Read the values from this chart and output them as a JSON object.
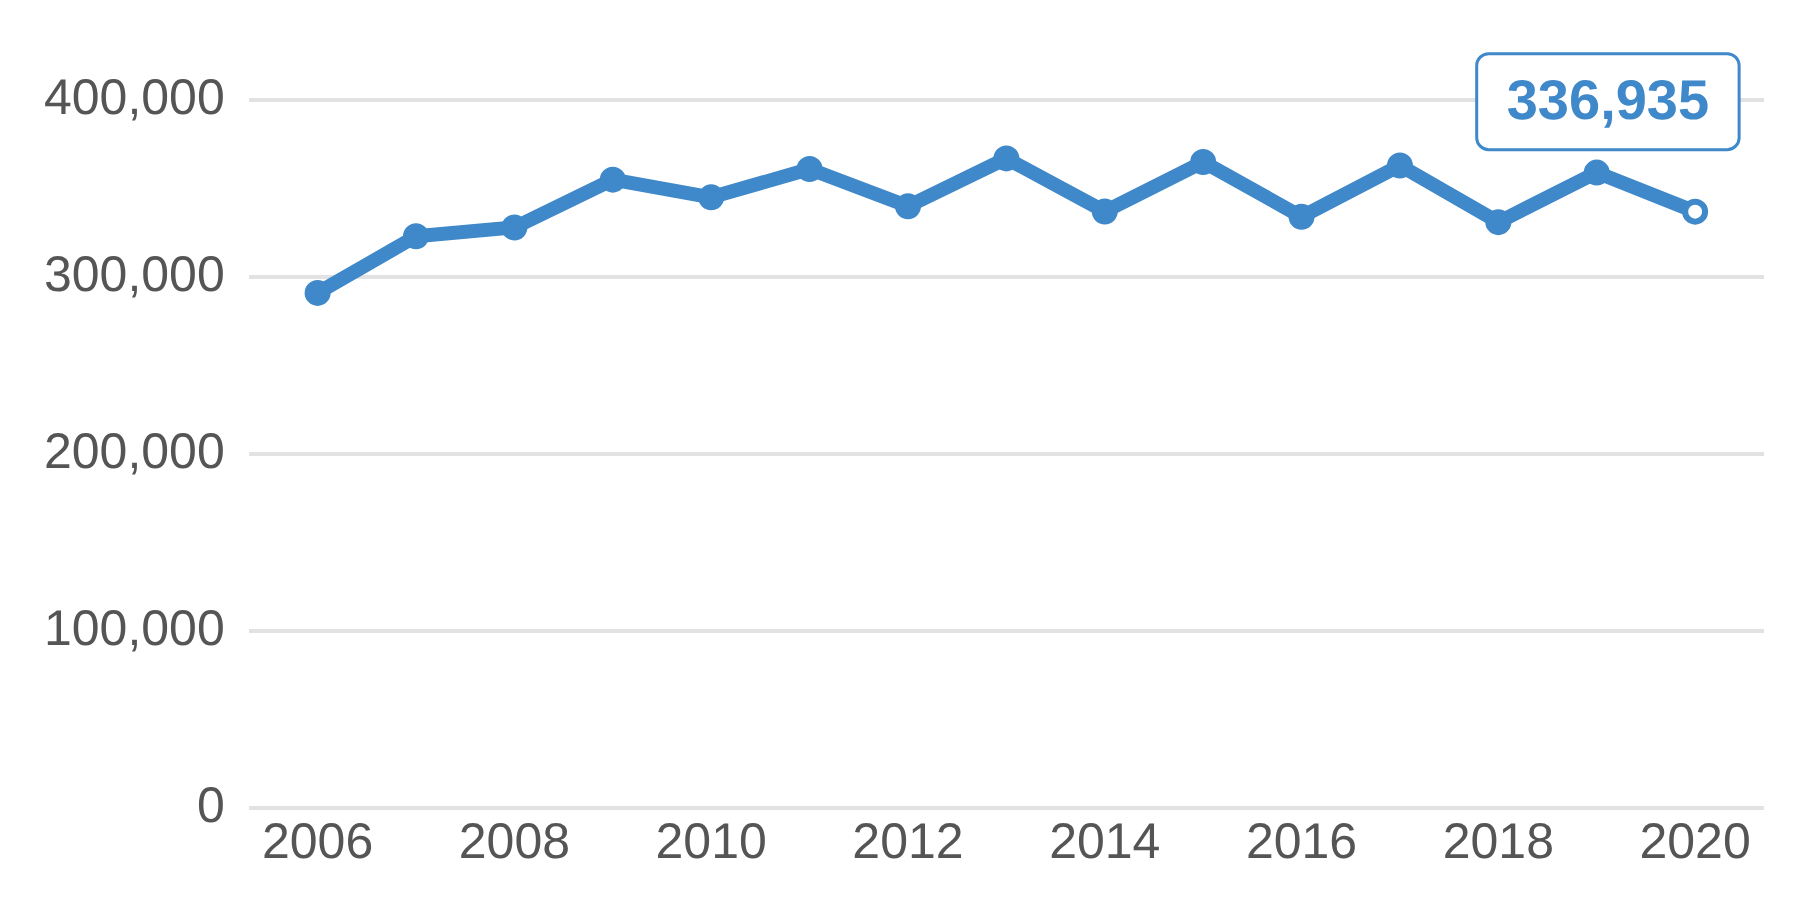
{
  "chart_data": {
    "type": "line",
    "x": [
      2006,
      2007,
      2008,
      2009,
      2010,
      2011,
      2012,
      2013,
      2014,
      2015,
      2016,
      2017,
      2018,
      2019,
      2020
    ],
    "series": [
      {
        "color": "#3f88c9",
        "values": [
          291000,
          323000,
          328000,
          355000,
          345000,
          361000,
          340000,
          367000,
          337000,
          365000,
          334000,
          363000,
          331000,
          359000,
          336935
        ]
      }
    ],
    "xlim": [
      2005.3,
      2020.7
    ],
    "xticks": [
      2006,
      2008,
      2010,
      2012,
      2014,
      2016,
      2018,
      2020
    ],
    "ylim": [
      0,
      400000
    ],
    "yticks": [
      0,
      {
        "value": 100000,
        "label": "100,000"
      },
      {
        "value": 200000,
        "label": "200,000"
      },
      {
        "value": 300000,
        "label": "300,000"
      },
      {
        "value": 400000,
        "label": "400,000"
      }
    ],
    "grid": "y",
    "legend": false,
    "marker": "circle",
    "line_style": "solid",
    "annotations": [
      {
        "text": "336,935",
        "x": 2020,
        "y": 336935
      }
    ]
  }
}
